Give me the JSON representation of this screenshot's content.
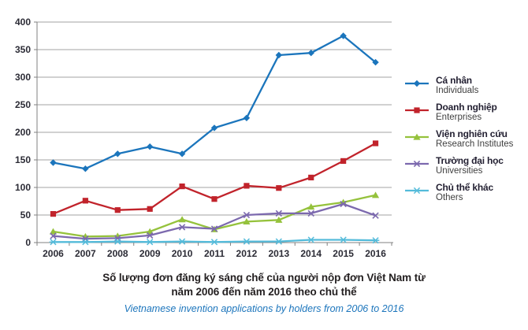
{
  "chart_data": {
    "type": "line",
    "categories": [
      "2006",
      "2007",
      "2008",
      "2009",
      "2010",
      "2011",
      "2012",
      "2013",
      "2014",
      "2015",
      "2016"
    ],
    "series": [
      {
        "name_vi": "Cá nhân",
        "name_en": "Individuals",
        "slug": "individuals",
        "color": "#1b75bc",
        "marker": "diamond",
        "values": [
          145,
          134,
          161,
          174,
          161,
          208,
          226,
          340,
          344,
          375,
          327
        ]
      },
      {
        "name_vi": "Doanh nghiệp",
        "name_en": "Enterprises",
        "slug": "enterprises",
        "color": "#c1232b",
        "marker": "square",
        "values": [
          52,
          76,
          59,
          61,
          102,
          79,
          103,
          99,
          118,
          148,
          180
        ]
      },
      {
        "name_vi": "Viện nghiên cứu",
        "name_en": "Research Institutes",
        "slug": "research-institutes",
        "color": "#95c23c",
        "marker": "triangle",
        "values": [
          20,
          11,
          12,
          20,
          42,
          24,
          38,
          41,
          65,
          73,
          86
        ]
      },
      {
        "name_vi": "Trường đại học",
        "name_en": "Universities",
        "slug": "universities",
        "color": "#7c69ae",
        "marker": "x",
        "values": [
          12,
          7,
          8,
          13,
          28,
          25,
          50,
          53,
          53,
          70,
          49
        ]
      },
      {
        "name_vi": "Chủ thể khác",
        "name_en": "Others",
        "slug": "others",
        "color": "#54bbda",
        "marker": "asterisk",
        "values": [
          1,
          1,
          2,
          1,
          2,
          1,
          2,
          2,
          5,
          5,
          4
        ]
      }
    ],
    "ylim": [
      0,
      400
    ],
    "ytick_step": 50,
    "grid": true,
    "legend_position": "right",
    "title_lines": [
      "Số lượng đơn đăng ký sáng chế của người nộp đơn Việt Nam từ",
      "năm 2006 đến năm 2016 theo chủ thể"
    ],
    "subtitle": "Vietnamese invention applications by holders from 2006 to 2016",
    "colors": {
      "gridline": "#a3a3a3",
      "axis": "#808080",
      "tick_label": "#2b2b35",
      "title": "#231f20",
      "subtitle": "#1c75bc"
    }
  }
}
